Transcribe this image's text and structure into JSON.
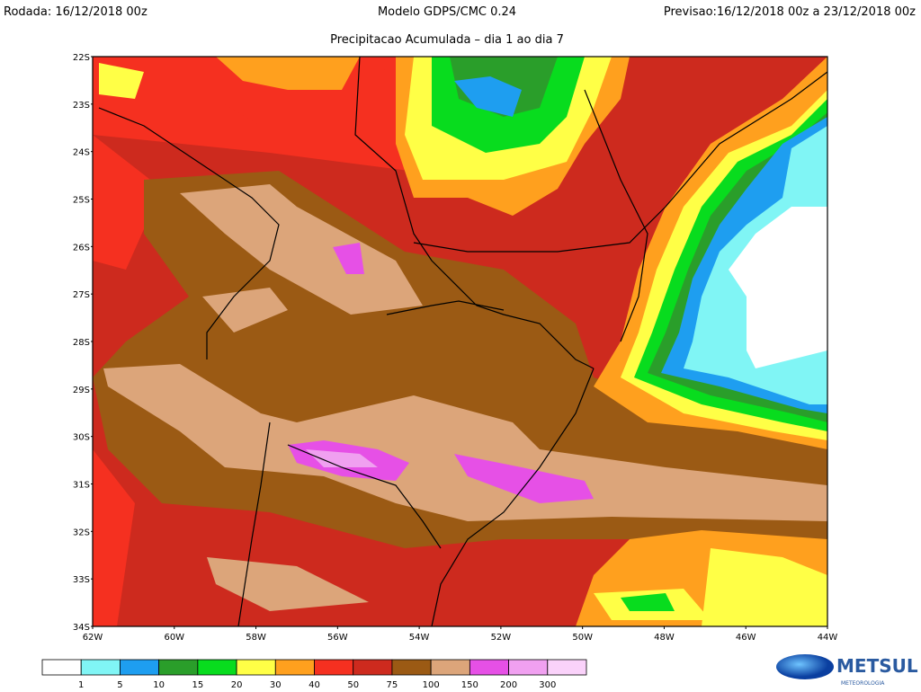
{
  "header": {
    "left": "Rodada: 16/12/2018 00z",
    "center": "Modelo GDPS/CMC 0.24",
    "right": "Previsao:16/12/2018 00z a 23/12/2018 00z",
    "subtitle": "Precipitacao Acumulada – dia 1 ao dia 7"
  },
  "map": {
    "lat_labels": [
      "22S",
      "23S",
      "24S",
      "25S",
      "26S",
      "27S",
      "28S",
      "29S",
      "30S",
      "31S",
      "32S",
      "33S",
      "34S"
    ],
    "lon_labels": [
      "62W",
      "60W",
      "58W",
      "56W",
      "54W",
      "52W",
      "50W",
      "48W",
      "46W",
      "44W"
    ]
  },
  "colorbar": {
    "colors": [
      "#ffffff",
      "#80f5f5",
      "#1e9ef0",
      "#2a9e2a",
      "#08dc1e",
      "#ffff46",
      "#ffa01e",
      "#f53020",
      "#cd2a1e",
      "#9b5a14",
      "#dca57a",
      "#e650e6",
      "#f0a0f0",
      "#fad2fa"
    ],
    "labels": [
      1,
      5,
      10,
      15,
      20,
      30,
      40,
      50,
      75,
      100,
      150,
      200,
      300
    ]
  },
  "logo": {
    "name": "METSUL",
    "tagline": "METEOROLOGIA"
  }
}
